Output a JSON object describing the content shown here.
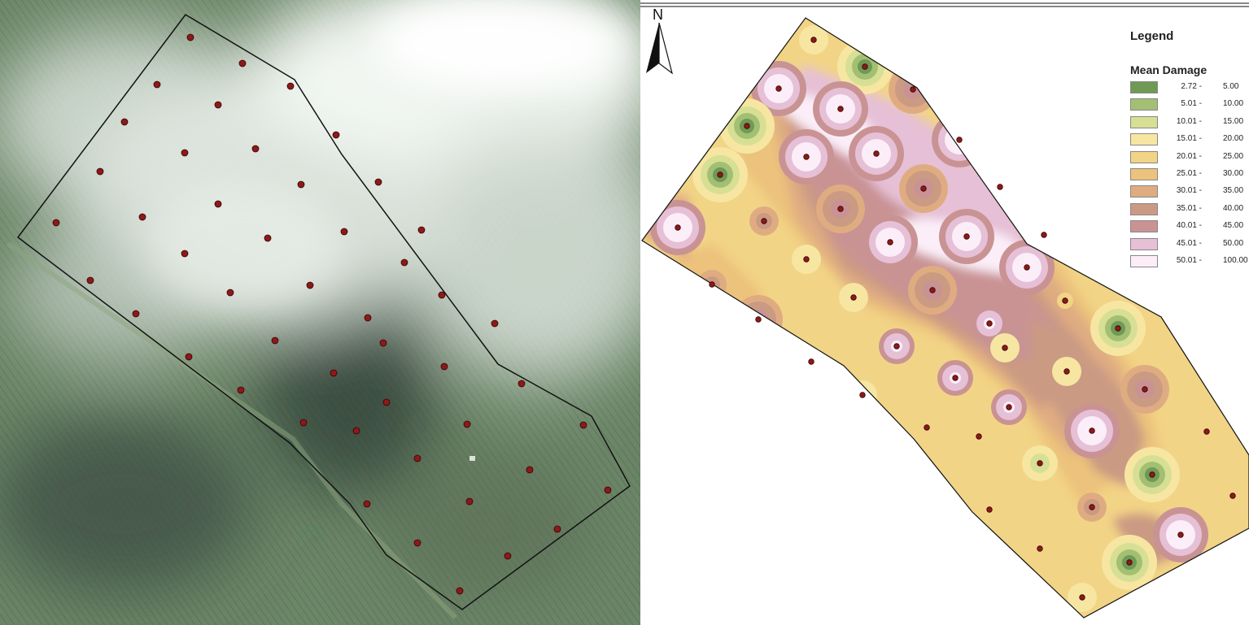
{
  "map": {
    "north_label": "N",
    "legend": {
      "title": "Legend",
      "subtitle": "Mean Damage",
      "classes": [
        {
          "lo": "2.72 -",
          "hi": "5.00",
          "color": "#6f9a55"
        },
        {
          "lo": "5.01 -",
          "hi": "10.00",
          "color": "#a3bf73"
        },
        {
          "lo": "10.01 -",
          "hi": "15.00",
          "color": "#d7df95"
        },
        {
          "lo": "15.01 -",
          "hi": "20.00",
          "color": "#f6e6a2"
        },
        {
          "lo": "20.01 -",
          "hi": "25.00",
          "color": "#f2d486"
        },
        {
          "lo": "25.01 -",
          "hi": "30.00",
          "color": "#ecc27c"
        },
        {
          "lo": "30.01 -",
          "hi": "35.00",
          "color": "#dfac82"
        },
        {
          "lo": "35.01 -",
          "hi": "40.00",
          "color": "#cb9a83"
        },
        {
          "lo": "40.01 -",
          "hi": "45.00",
          "color": "#c99394"
        },
        {
          "lo": "45.01 -",
          "hi": "50.00",
          "color": "#e6c0d6"
        },
        {
          "lo": "50.01 -",
          "hi": "100.00",
          "color": "#fbeef8"
        }
      ]
    },
    "colors": {
      "point_fill": "#8b1a1a",
      "boundary": "#111111",
      "aerial_green": "#5f7d5a",
      "cloud": "#dfe6e0"
    }
  }
}
